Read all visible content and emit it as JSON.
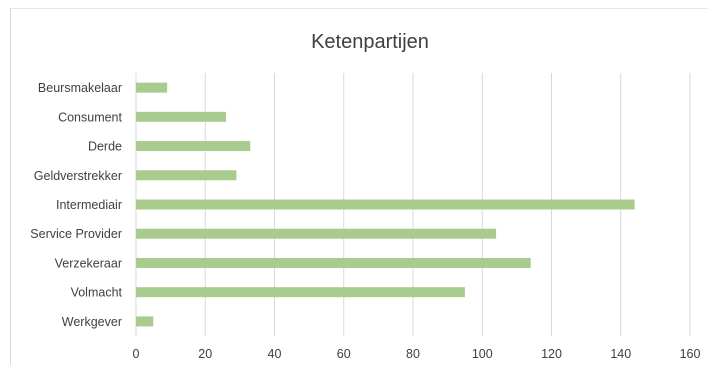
{
  "chart_data": {
    "type": "bar",
    "orientation": "horizontal",
    "title": "Ketenpartijen",
    "categories": [
      "Beursmakelaar",
      "Consument",
      "Derde",
      "Geldverstrekker",
      "Intermediair",
      "Service Provider",
      "Verzekeraar",
      "Volmacht",
      "Werkgever"
    ],
    "values": [
      9,
      26,
      33,
      29,
      144,
      104,
      114,
      95,
      5
    ],
    "xlim": [
      0,
      160
    ],
    "xticks": [
      "0",
      "20",
      "40",
      "60",
      "80",
      "100",
      "120",
      "140",
      "160"
    ],
    "grid": "vertical",
    "bar_color": "#a9cc8e",
    "grid_color": "#d9d9d9"
  }
}
